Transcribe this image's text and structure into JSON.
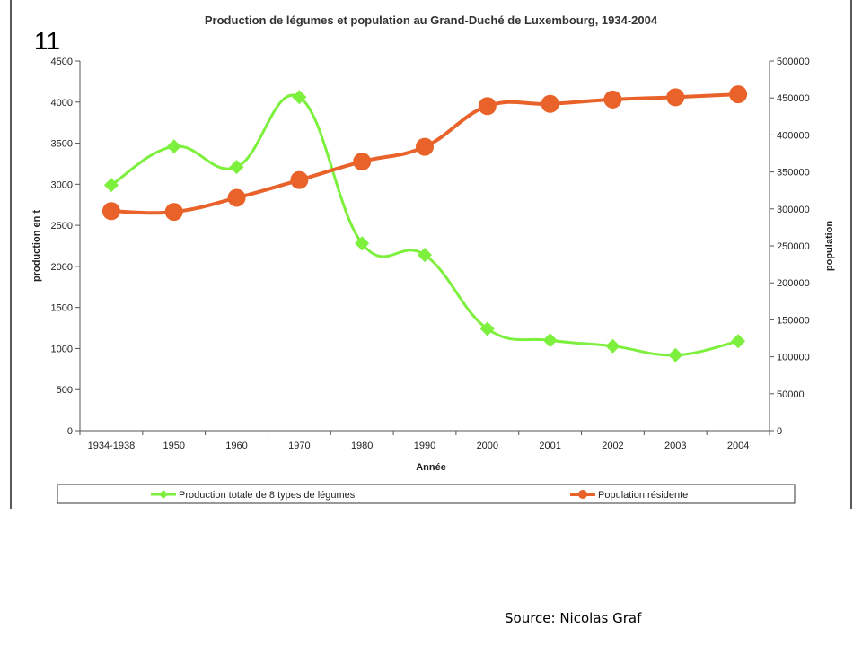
{
  "slide": {
    "number": "11",
    "source": "Source: Nicolas Graf"
  },
  "chart_data": {
    "type": "line",
    "title": "Production de légumes et population au Grand-Duché de Luxembourg, 1934-2004",
    "xlabel": "Année",
    "ylabel": "production en t",
    "y2label": "population",
    "categories": [
      "1934-1938",
      "1950",
      "1960",
      "1970",
      "1980",
      "1990",
      "2000",
      "2001",
      "2002",
      "2003",
      "2004"
    ],
    "ylim": [
      0,
      4500
    ],
    "yticks": [
      0,
      500,
      1000,
      1500,
      2000,
      2500,
      3000,
      3500,
      4000,
      4500
    ],
    "y2lim": [
      0,
      500000
    ],
    "y2ticks": [
      0,
      50000,
      100000,
      150000,
      200000,
      250000,
      300000,
      350000,
      400000,
      450000,
      500000
    ],
    "grid": false,
    "legend_position": "bottom",
    "series": [
      {
        "name": "Production totale de 8 types de légumes",
        "axis": "left",
        "color": "#7CF03C",
        "marker": "diamond",
        "values": [
          2990,
          3460,
          3210,
          4060,
          2280,
          2140,
          1240,
          1100,
          1030,
          920,
          1090
        ]
      },
      {
        "name": "Population résidente",
        "axis": "right",
        "color": "#E8622A",
        "marker": "circle",
        "values": [
          297000,
          296000,
          315000,
          339000,
          364000,
          384000,
          439000,
          442000,
          448000,
          451000,
          455000
        ]
      }
    ]
  }
}
